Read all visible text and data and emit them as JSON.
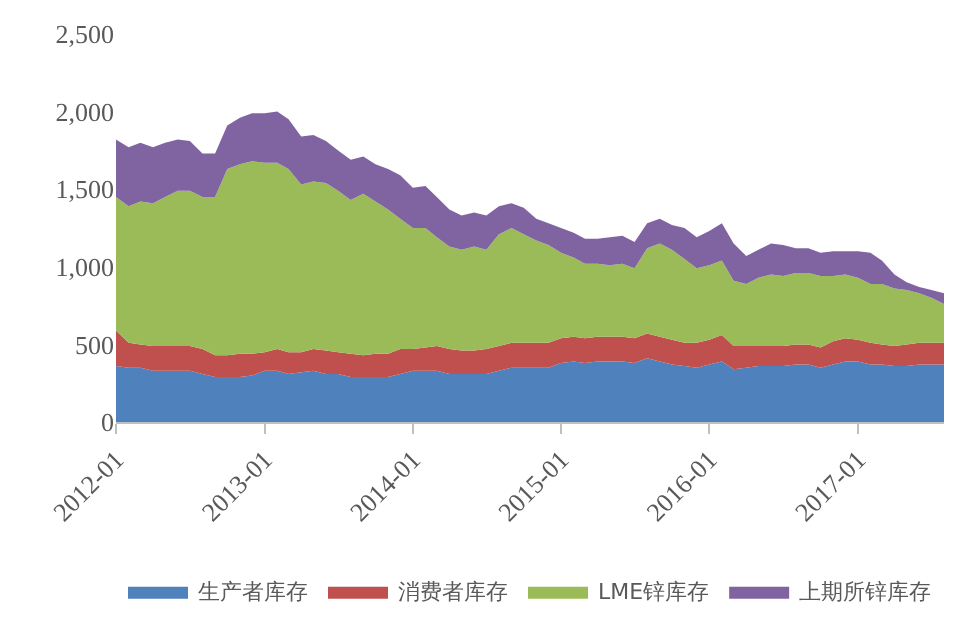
{
  "chart_data": {
    "type": "area",
    "stacked": true,
    "x": [
      "2012-01",
      "2012-02",
      "2012-03",
      "2012-04",
      "2012-05",
      "2012-06",
      "2012-07",
      "2012-08",
      "2012-09",
      "2012-10",
      "2012-11",
      "2012-12",
      "2013-01",
      "2013-02",
      "2013-03",
      "2013-04",
      "2013-05",
      "2013-06",
      "2013-07",
      "2013-08",
      "2013-09",
      "2013-10",
      "2013-11",
      "2013-12",
      "2014-01",
      "2014-02",
      "2014-03",
      "2014-04",
      "2014-05",
      "2014-06",
      "2014-07",
      "2014-08",
      "2014-09",
      "2014-10",
      "2014-11",
      "2014-12",
      "2015-01",
      "2015-02",
      "2015-03",
      "2015-04",
      "2015-05",
      "2015-06",
      "2015-07",
      "2015-08",
      "2015-09",
      "2015-10",
      "2015-11",
      "2015-12",
      "2016-01",
      "2016-02",
      "2016-03",
      "2016-04",
      "2016-05",
      "2016-06",
      "2016-07",
      "2016-08",
      "2016-09",
      "2016-10",
      "2016-11",
      "2016-12",
      "2017-01",
      "2017-02",
      "2017-03",
      "2017-04",
      "2017-05",
      "2017-06",
      "2017-07",
      "2017-08"
    ],
    "series": [
      {
        "name": "生产者库存",
        "color": "#4f81bd",
        "values": [
          360,
          350,
          350,
          330,
          330,
          330,
          330,
          310,
          290,
          290,
          290,
          300,
          330,
          330,
          310,
          320,
          330,
          310,
          310,
          290,
          290,
          290,
          290,
          310,
          330,
          330,
          330,
          310,
          310,
          310,
          310,
          330,
          350,
          350,
          350,
          350,
          380,
          390,
          380,
          390,
          390,
          390,
          380,
          410,
          390,
          370,
          360,
          350,
          370,
          390,
          340,
          350,
          360,
          360,
          360,
          370,
          370,
          350,
          370,
          390,
          390,
          370,
          370,
          360,
          360,
          370,
          370,
          370
        ]
      },
      {
        "name": "消费者库存",
        "color": "#c0504d",
        "values": [
          230,
          160,
          150,
          160,
          160,
          160,
          160,
          160,
          140,
          140,
          150,
          140,
          120,
          140,
          140,
          130,
          140,
          150,
          140,
          150,
          140,
          150,
          150,
          160,
          140,
          150,
          160,
          160,
          150,
          150,
          160,
          160,
          160,
          160,
          160,
          160,
          160,
          160,
          160,
          160,
          160,
          160,
          160,
          160,
          160,
          160,
          150,
          160,
          160,
          170,
          150,
          140,
          130,
          130,
          130,
          130,
          130,
          130,
          150,
          150,
          140,
          140,
          130,
          130,
          140,
          140,
          140,
          140
        ]
      },
      {
        "name": "LME锌库存",
        "color": "#9bbb59",
        "values": [
          860,
          880,
          920,
          920,
          960,
          1000,
          1000,
          980,
          1020,
          1200,
          1220,
          1240,
          1220,
          1200,
          1180,
          1080,
          1080,
          1080,
          1040,
          990,
          1040,
          980,
          930,
          840,
          780,
          770,
          700,
          660,
          650,
          670,
          640,
          720,
          740,
          700,
          660,
          630,
          550,
          510,
          480,
          470,
          460,
          470,
          450,
          550,
          600,
          580,
          540,
          480,
          480,
          480,
          420,
          400,
          440,
          460,
          450,
          460,
          460,
          460,
          420,
          410,
          400,
          380,
          390,
          370,
          350,
          320,
          290,
          250
        ]
      },
      {
        "name": "上期所锌库存",
        "color": "#8064a2",
        "values": [
          370,
          380,
          380,
          360,
          350,
          330,
          320,
          280,
          280,
          280,
          300,
          310,
          320,
          330,
          320,
          310,
          300,
          270,
          260,
          260,
          240,
          240,
          260,
          280,
          260,
          270,
          260,
          240,
          220,
          220,
          220,
          180,
          160,
          170,
          140,
          140,
          160,
          160,
          160,
          160,
          180,
          180,
          170,
          160,
          160,
          160,
          200,
          200,
          220,
          240,
          240,
          180,
          180,
          200,
          200,
          160,
          160,
          150,
          160,
          150,
          170,
          200,
          150,
          90,
          50,
          40,
          50,
          70
        ]
      }
    ],
    "xlim": [
      "2012-01",
      "2017-08"
    ],
    "xticks": [
      "2012-01",
      "2013-01",
      "2014-01",
      "2015-01",
      "2016-01",
      "2017-01"
    ],
    "ylim": [
      0,
      2500
    ],
    "yticks": [
      0,
      {
        "value": 500,
        "label": "500"
      },
      {
        "value": 1000,
        "label": "1,000"
      },
      {
        "value": 1500,
        "label": "1,500"
      },
      {
        "value": 2000,
        "label": "2,000"
      },
      {
        "value": 2500,
        "label": "2,500"
      }
    ],
    "legend": "bottom"
  }
}
